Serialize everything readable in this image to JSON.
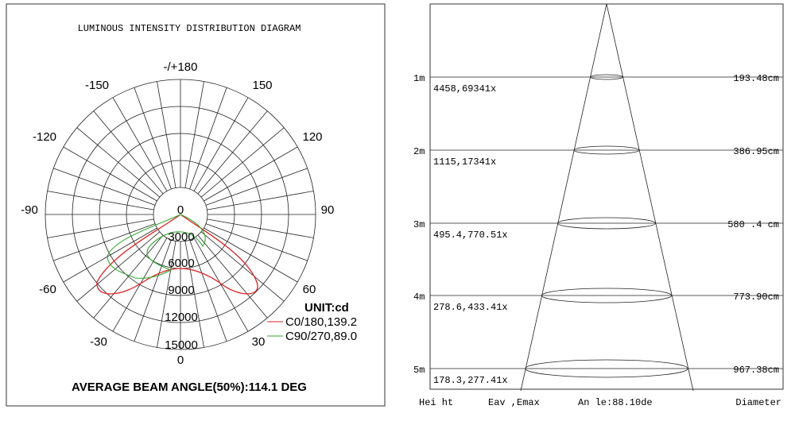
{
  "left": {
    "title": "LUMINOUS INTENSITY DISTRIBUTION DIAGRAM",
    "angle_labels": [
      "-/+180",
      "150",
      "-150",
      "120",
      "-120",
      "90",
      "-90",
      "60",
      "-60",
      "30",
      "-30",
      "0",
      "0"
    ],
    "radial_labels": [
      "3000",
      "6000",
      "9000",
      "12000",
      "15000"
    ],
    "unit": "UNIT:cd",
    "legend": [
      "C0/180,139.2",
      "C90/270,89.0"
    ],
    "footer": "AVERAGE BEAM ANGLE(50%):114.1 DEG"
  },
  "right": {
    "rows": [
      {
        "height": "1m",
        "illuminance": "4458,69341x",
        "diameter": "193.48cm"
      },
      {
        "height": "2m",
        "illuminance": "1115,17341x",
        "diameter": "386.95cm"
      },
      {
        "height": "3m",
        "illuminance": "495.4,770.51x",
        "diameter": "580 .4 cm"
      },
      {
        "height": "4m",
        "illuminance": "278.6,433.41x",
        "diameter": "773.90cm"
      },
      {
        "height": "5m",
        "illuminance": "178.3,277.41x",
        "diameter": "967.38cm"
      }
    ],
    "footer": [
      "Hei ht",
      "Eav ,Emax",
      "An le:88.10de",
      "Diameter"
    ]
  }
}
